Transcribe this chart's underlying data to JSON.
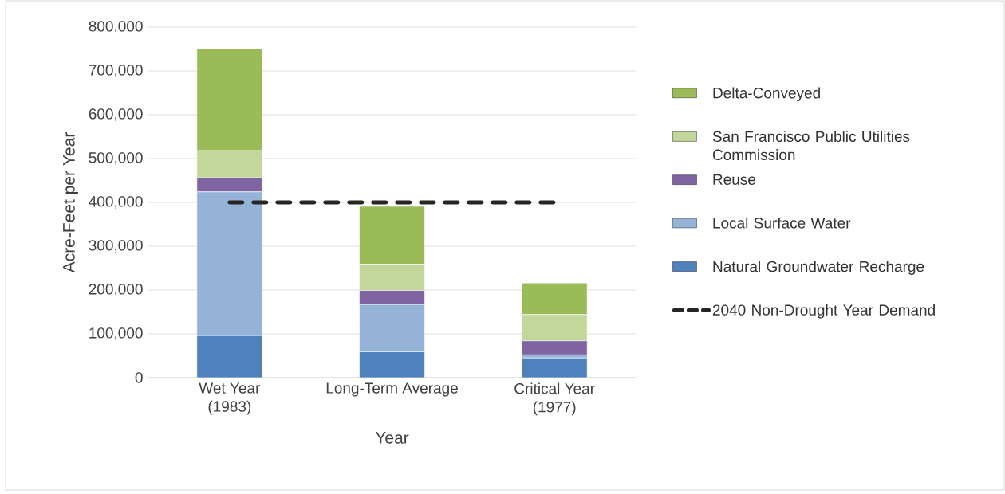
{
  "chart_data": {
    "type": "bar",
    "stacked": true,
    "xlabel": "Year",
    "ylabel": "Acre-Feet per Year",
    "categories": [
      "Wet Year\n(1983)",
      "Long-Term Average",
      "Critical Year\n(1977)"
    ],
    "ylim": [
      0,
      800000
    ],
    "yticks": [
      {
        "value": 0,
        "label": "0"
      },
      {
        "value": 100000,
        "label": "100,000"
      },
      {
        "value": 200000,
        "label": "200,000"
      },
      {
        "value": 300000,
        "label": "300,000"
      },
      {
        "value": 400000,
        "label": "400,000"
      },
      {
        "value": 500000,
        "label": "500,000"
      },
      {
        "value": 600000,
        "label": "600,000"
      },
      {
        "value": 700000,
        "label": "700,000"
      },
      {
        "value": 800000,
        "label": "800,000"
      }
    ],
    "grid": "y",
    "legend": "right",
    "series": [
      {
        "name": "Natural Groundwater Recharge",
        "color": "#4f81bd",
        "values": [
          96000,
          59000,
          45000
        ]
      },
      {
        "name": "Local Surface Water",
        "color": "#95b3d7",
        "values": [
          328000,
          108000,
          7000
        ]
      },
      {
        "name": "Reuse",
        "color": "#8064a2",
        "values": [
          32000,
          32000,
          32000
        ]
      },
      {
        "name": "San Francisco Public Utilities Commission",
        "color": "#c4d79b",
        "values": [
          62000,
          60000,
          60000
        ]
      },
      {
        "name": "Delta-Conveyed",
        "color": "#9bbb59",
        "values": [
          233000,
          132000,
          72000
        ]
      },
      {
        "name": "2040 Non-Drought Year Demand",
        "type": "line",
        "line_style": "dashed",
        "color": "#262626",
        "values": [
          400000,
          400000,
          400000
        ]
      }
    ]
  }
}
